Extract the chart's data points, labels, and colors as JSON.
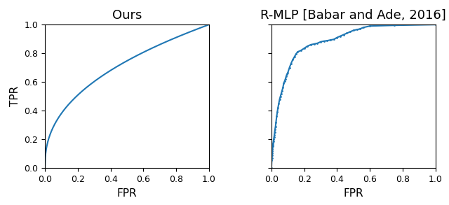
{
  "title_left": "Ours",
  "title_right": "R-MLP [Babar and Ade, 2016]",
  "xlabel": "FPR",
  "ylabel": "TPR",
  "line_color": "#1f77b4",
  "line_width": 1.5,
  "xlim": [
    0.0,
    1.0
  ],
  "ylim": [
    0.0,
    1.0
  ],
  "xticks": [
    0.0,
    0.2,
    0.4,
    0.6,
    0.8,
    1.0
  ],
  "yticks": [
    0.0,
    0.2,
    0.4,
    0.6,
    0.8,
    1.0
  ],
  "smooth_curve_power": 0.42,
  "n_smooth_points": 500,
  "rmlp_fpr": [
    0.0,
    0.002,
    0.003,
    0.004,
    0.005,
    0.006,
    0.007,
    0.008,
    0.009,
    0.01,
    0.012,
    0.014,
    0.016,
    0.018,
    0.02,
    0.022,
    0.025,
    0.028,
    0.032,
    0.036,
    0.04,
    0.045,
    0.05,
    0.055,
    0.06,
    0.065,
    0.07,
    0.075,
    0.08,
    0.085,
    0.09,
    0.095,
    0.1,
    0.11,
    0.12,
    0.13,
    0.14,
    0.15,
    0.16,
    0.18,
    0.2,
    0.22,
    0.24,
    0.26,
    0.28,
    0.3,
    0.32,
    0.34,
    0.36,
    0.38,
    0.4,
    0.42,
    0.44,
    0.46,
    0.48,
    0.5,
    0.52,
    0.54,
    0.56,
    0.6,
    0.75,
    1.0
  ],
  "rmlp_tpr": [
    0.0,
    0.055,
    0.07,
    0.09,
    0.105,
    0.12,
    0.135,
    0.15,
    0.16,
    0.17,
    0.185,
    0.2,
    0.215,
    0.23,
    0.25,
    0.27,
    0.29,
    0.32,
    0.36,
    0.39,
    0.42,
    0.45,
    0.48,
    0.5,
    0.52,
    0.54,
    0.56,
    0.59,
    0.605,
    0.62,
    0.64,
    0.655,
    0.665,
    0.7,
    0.73,
    0.755,
    0.775,
    0.795,
    0.81,
    0.82,
    0.835,
    0.85,
    0.86,
    0.865,
    0.87,
    0.88,
    0.885,
    0.888,
    0.893,
    0.897,
    0.91,
    0.92,
    0.93,
    0.94,
    0.95,
    0.96,
    0.965,
    0.97,
    0.98,
    0.99,
    0.995,
    1.0
  ],
  "title_fontsize": 13,
  "axis_label_fontsize": 11,
  "tick_fontsize": 9
}
